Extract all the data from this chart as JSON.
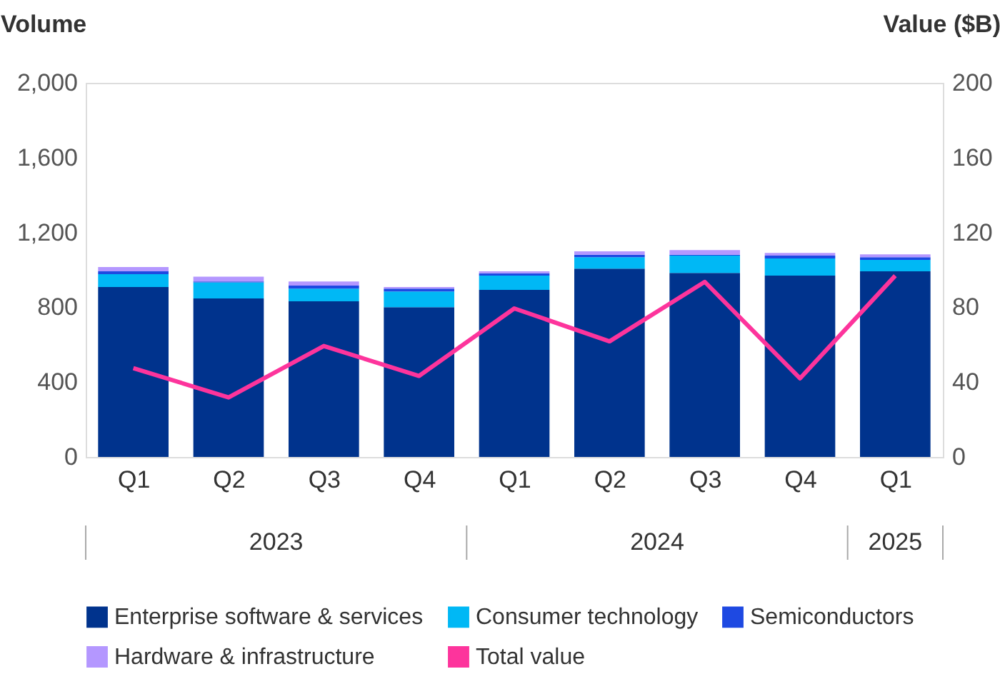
{
  "chart_data": {
    "type": "bar",
    "stacked": true,
    "xlabel": null,
    "ylabel": "Volume",
    "y2label": "Value ($B)",
    "categories": [
      "Q1",
      "Q2",
      "Q3",
      "Q4",
      "Q1",
      "Q2",
      "Q3",
      "Q4",
      "Q1"
    ],
    "series": [
      {
        "name": "Enterprise software & services",
        "color": "#00338d",
        "values": [
          908,
          847,
          832,
          801,
          893,
          1007,
          984,
          969,
          992
        ]
      },
      {
        "name": "Consumer technology",
        "color": "#00b8f5",
        "values": [
          69,
          86,
          68,
          84,
          76,
          61,
          92,
          92,
          61
        ]
      },
      {
        "name": "Semiconductors",
        "color": "#1e49e2",
        "values": [
          15,
          5,
          16,
          15,
          13,
          13,
          5,
          15,
          15
        ]
      },
      {
        "name": "Hardware & infrastructure",
        "color": "#b497ff",
        "values": [
          23,
          26,
          22,
          8,
          10,
          18,
          25,
          15,
          15
        ]
      },
      {
        "name": "Total value",
        "color": "#fd349c",
        "type": "line",
        "axis": "y2",
        "values": [
          47.5,
          31.8,
          59.3,
          43.3,
          79.4,
          61.8,
          93.6,
          42,
          96.9
        ]
      }
    ],
    "ylim": [
      0,
      2000
    ],
    "yticks": [
      {
        "value": 0,
        "label": "0"
      },
      {
        "value": 400,
        "label": "400"
      },
      {
        "value": 800,
        "label": "800"
      },
      {
        "value": 1200,
        "label": "1,200"
      },
      {
        "value": 1600,
        "label": "1,600"
      },
      {
        "value": 2000,
        "label": "2,000"
      }
    ],
    "y2lim": [
      0,
      200
    ],
    "y2ticks": [
      0,
      40,
      80,
      120,
      160,
      200
    ],
    "annotations": [
      "2023",
      "2024",
      "2025"
    ],
    "grid": false,
    "legend": "bottom",
    "marker": "none",
    "line_style": "solid"
  }
}
